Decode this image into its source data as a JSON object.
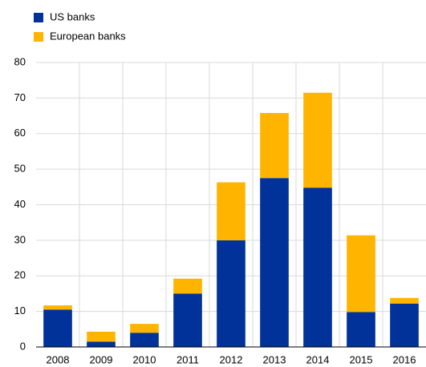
{
  "chart_data": {
    "type": "stacked_bar",
    "categories": [
      "2008",
      "2009",
      "2010",
      "2011",
      "2012",
      "2013",
      "2014",
      "2015",
      "2016"
    ],
    "series": [
      {
        "name": "US banks",
        "color": "#003299",
        "values": [
          10.5,
          1.5,
          4,
          15,
          30,
          47.5,
          44.8,
          9.8,
          12.2
        ]
      },
      {
        "name": "European banks",
        "color": "#ffb400",
        "values": [
          1.2,
          2.8,
          2.5,
          4.2,
          16.3,
          18.3,
          26.7,
          21.6,
          1.6
        ]
      }
    ],
    "ylim": [
      0,
      80
    ],
    "yticks": [
      0,
      10,
      20,
      30,
      40,
      50,
      60,
      70,
      80
    ],
    "grid": true
  }
}
